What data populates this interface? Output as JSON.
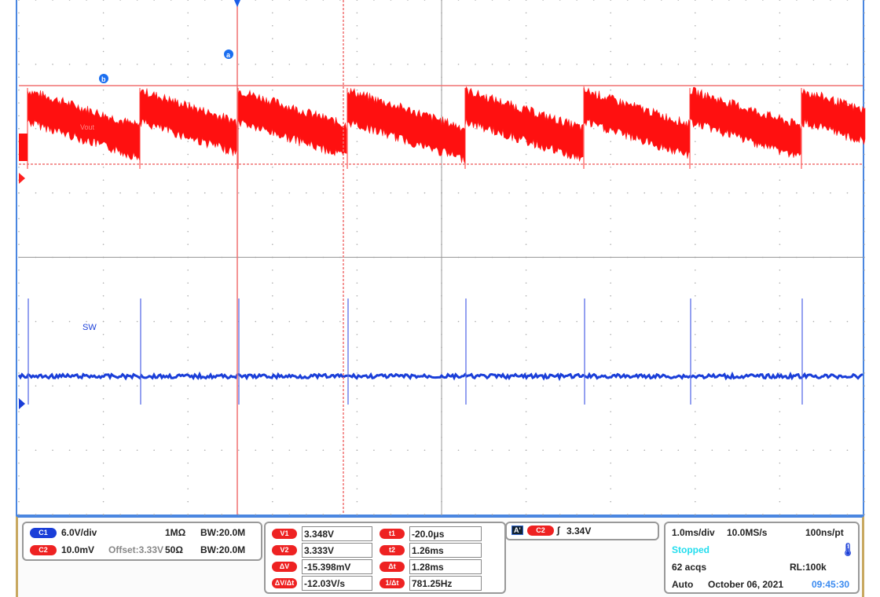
{
  "chart_data": {
    "type": "line",
    "grid": true,
    "x_divisions": 10,
    "y_divisions": 8,
    "timebase": "1.0ms/div",
    "series": [
      {
        "name": "Vout",
        "channel": "C2",
        "color": "#ff0000",
        "shape": "sawtooth",
        "period_ms": 1.28
      },
      {
        "name": "SW",
        "channel": "C1",
        "color": "#1a3ed8",
        "shape": "pulse",
        "period_ms": 1.28
      }
    ],
    "cursors": {
      "a": "a",
      "b": "b"
    }
  },
  "channels": {
    "c1": {
      "badge": "C1",
      "scale": "6.0V/div",
      "impedance": "1MΩ",
      "bw": "20.0M",
      "bw_label": "BW:"
    },
    "c2": {
      "badge": "C2",
      "scale": "10.0mV",
      "offset": "Offset:3.33V",
      "impedance": "50Ω",
      "bw": "20.0M",
      "bw_label": "BW:"
    }
  },
  "measurements": {
    "left": [
      {
        "label": "V1",
        "value": "3.348V"
      },
      {
        "label": "V2",
        "value": "3.333V"
      },
      {
        "label": "ΔV",
        "value": "-15.398mV"
      },
      {
        "label": "ΔV/Δt",
        "value": "-12.03V/s"
      }
    ],
    "right": [
      {
        "label": "t1",
        "value": "-20.0μs"
      },
      {
        "label": "t2",
        "value": "1.26ms"
      },
      {
        "label": "Δt",
        "value": "1.28ms"
      },
      {
        "label": "1/Δt",
        "value": "781.25Hz"
      }
    ]
  },
  "trigger": {
    "mode_badge": "A'",
    "source": "C2",
    "level": "3.34V"
  },
  "acquisition": {
    "timebase": "1.0ms/div",
    "sample_rate": "10.0MS/s",
    "resolution": "100ns/pt",
    "state": "Stopped",
    "acqs": "62 acqs",
    "record_length": "RL:100k",
    "trigger_mode": "Auto",
    "date": "October 06, 2021",
    "time": "09:45:30"
  },
  "colors": {
    "ch1": "#1a3ed8",
    "ch2": "#ff0000",
    "cursor": "#f07070",
    "stopped": "#22ddee",
    "time": "#3a8af0"
  }
}
